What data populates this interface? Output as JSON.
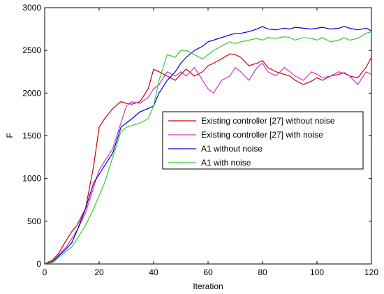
{
  "chart_data": {
    "type": "line",
    "xlabel": "Iteration",
    "ylabel": "F",
    "xlim": [
      0,
      120
    ],
    "ylim": [
      0,
      3000
    ],
    "xticks": [
      "0",
      "20",
      "40",
      "60",
      "80",
      "100",
      "120"
    ],
    "yticks": [
      "0",
      "500",
      "1000",
      "1500",
      "2000",
      "2500",
      "3000"
    ],
    "grid": false,
    "legend_position": "center-right",
    "x": [
      0,
      3,
      5,
      8,
      10,
      12,
      15,
      18,
      20,
      22,
      25,
      28,
      30,
      32,
      35,
      38,
      40,
      42,
      45,
      48,
      50,
      52,
      55,
      58,
      60,
      62,
      65,
      68,
      70,
      72,
      75,
      78,
      80,
      82,
      85,
      88,
      90,
      92,
      95,
      98,
      100,
      102,
      105,
      108,
      110,
      112,
      115,
      118,
      120
    ],
    "series": [
      {
        "name": "Existing controller [27] without noise",
        "color": "#cc0000",
        "values": [
          0,
          50,
          120,
          280,
          380,
          460,
          650,
          1150,
          1600,
          1700,
          1820,
          1900,
          1880,
          1870,
          1900,
          2050,
          2280,
          2250,
          2200,
          2150,
          2220,
          2280,
          2200,
          2250,
          2320,
          2350,
          2400,
          2460,
          2450,
          2420,
          2320,
          2350,
          2380,
          2300,
          2250,
          2220,
          2200,
          2150,
          2100,
          2140,
          2180,
          2150,
          2200,
          2220,
          2240,
          2200,
          2180,
          2300,
          2420
        ]
      },
      {
        "name": "Existing controller [27] with noise",
        "color": "#cc33cc",
        "values": [
          0,
          30,
          100,
          200,
          300,
          400,
          600,
          900,
          1100,
          1200,
          1350,
          1650,
          1850,
          1900,
          1880,
          1950,
          2050,
          2100,
          2250,
          2200,
          2250,
          2200,
          2300,
          2150,
          2050,
          2000,
          2150,
          2200,
          2300,
          2250,
          2150,
          2300,
          2350,
          2250,
          2200,
          2300,
          2250,
          2200,
          2150,
          2250,
          2220,
          2180,
          2200,
          2250,
          2230,
          2200,
          2100,
          2250,
          2220
        ]
      },
      {
        "name": "A1 without noise",
        "color": "#0000cc",
        "values": [
          0,
          30,
          90,
          180,
          250,
          400,
          650,
          950,
          1050,
          1150,
          1300,
          1600,
          1650,
          1700,
          1780,
          1820,
          1850,
          2000,
          2150,
          2250,
          2350,
          2420,
          2500,
          2550,
          2600,
          2620,
          2650,
          2680,
          2700,
          2700,
          2720,
          2750,
          2780,
          2750,
          2740,
          2760,
          2750,
          2770,
          2760,
          2750,
          2760,
          2770,
          2750,
          2760,
          2780,
          2760,
          2740,
          2760,
          2730
        ]
      },
      {
        "name": "A1 with noise",
        "color": "#33cc33",
        "values": [
          0,
          20,
          70,
          150,
          200,
          300,
          450,
          650,
          800,
          950,
          1250,
          1550,
          1600,
          1620,
          1650,
          1700,
          1850,
          2150,
          2450,
          2420,
          2500,
          2500,
          2450,
          2400,
          2450,
          2500,
          2550,
          2600,
          2580,
          2600,
          2620,
          2640,
          2620,
          2650,
          2640,
          2660,
          2650,
          2620,
          2650,
          2640,
          2620,
          2650,
          2600,
          2620,
          2650,
          2620,
          2640,
          2700,
          2720
        ]
      }
    ]
  }
}
